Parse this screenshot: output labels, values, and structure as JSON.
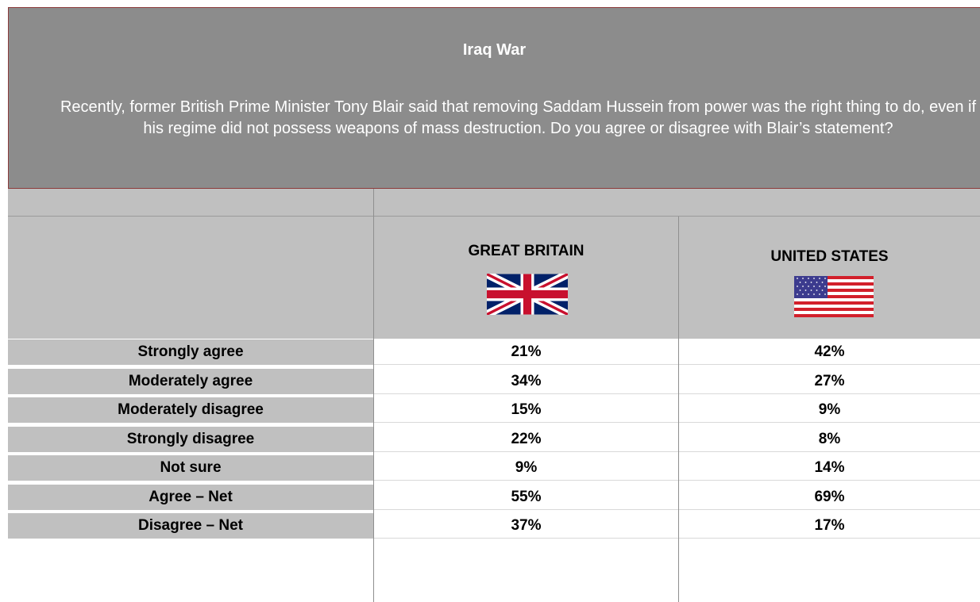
{
  "chart_data": {
    "type": "table",
    "title": "Iraq War",
    "question": "Recently, former British Prime Minister Tony Blair said that removing Saddam Hussein from power was the right thing to do, even if his regime did not possess weapons of mass destruction. Do you agree or disagree with Blair’s statement?",
    "columns": [
      "GREAT BRITAIN",
      "UNITED STATES"
    ],
    "rows": [
      {
        "label": "Strongly agree",
        "values": [
          "21%",
          "42%"
        ]
      },
      {
        "label": "Moderately agree",
        "values": [
          "34%",
          "27%"
        ]
      },
      {
        "label": "Moderately disagree",
        "values": [
          "15%",
          "9%"
        ]
      },
      {
        "label": "Strongly disagree",
        "values": [
          "22%",
          "8%"
        ]
      },
      {
        "label": "Not sure",
        "values": [
          "9%",
          "14%"
        ]
      },
      {
        "label": "Agree – Net",
        "values": [
          "55%",
          "69%"
        ]
      },
      {
        "label": "Disagree – Net",
        "values": [
          "37%",
          "17%"
        ]
      }
    ]
  },
  "icons": {
    "gb": "union-jack-flag-icon",
    "us": "us-flag-icon"
  },
  "colors": {
    "title_band": "#8c8c8c",
    "label_cell": "#c0c0c0",
    "value_cell": "#ffffff"
  }
}
